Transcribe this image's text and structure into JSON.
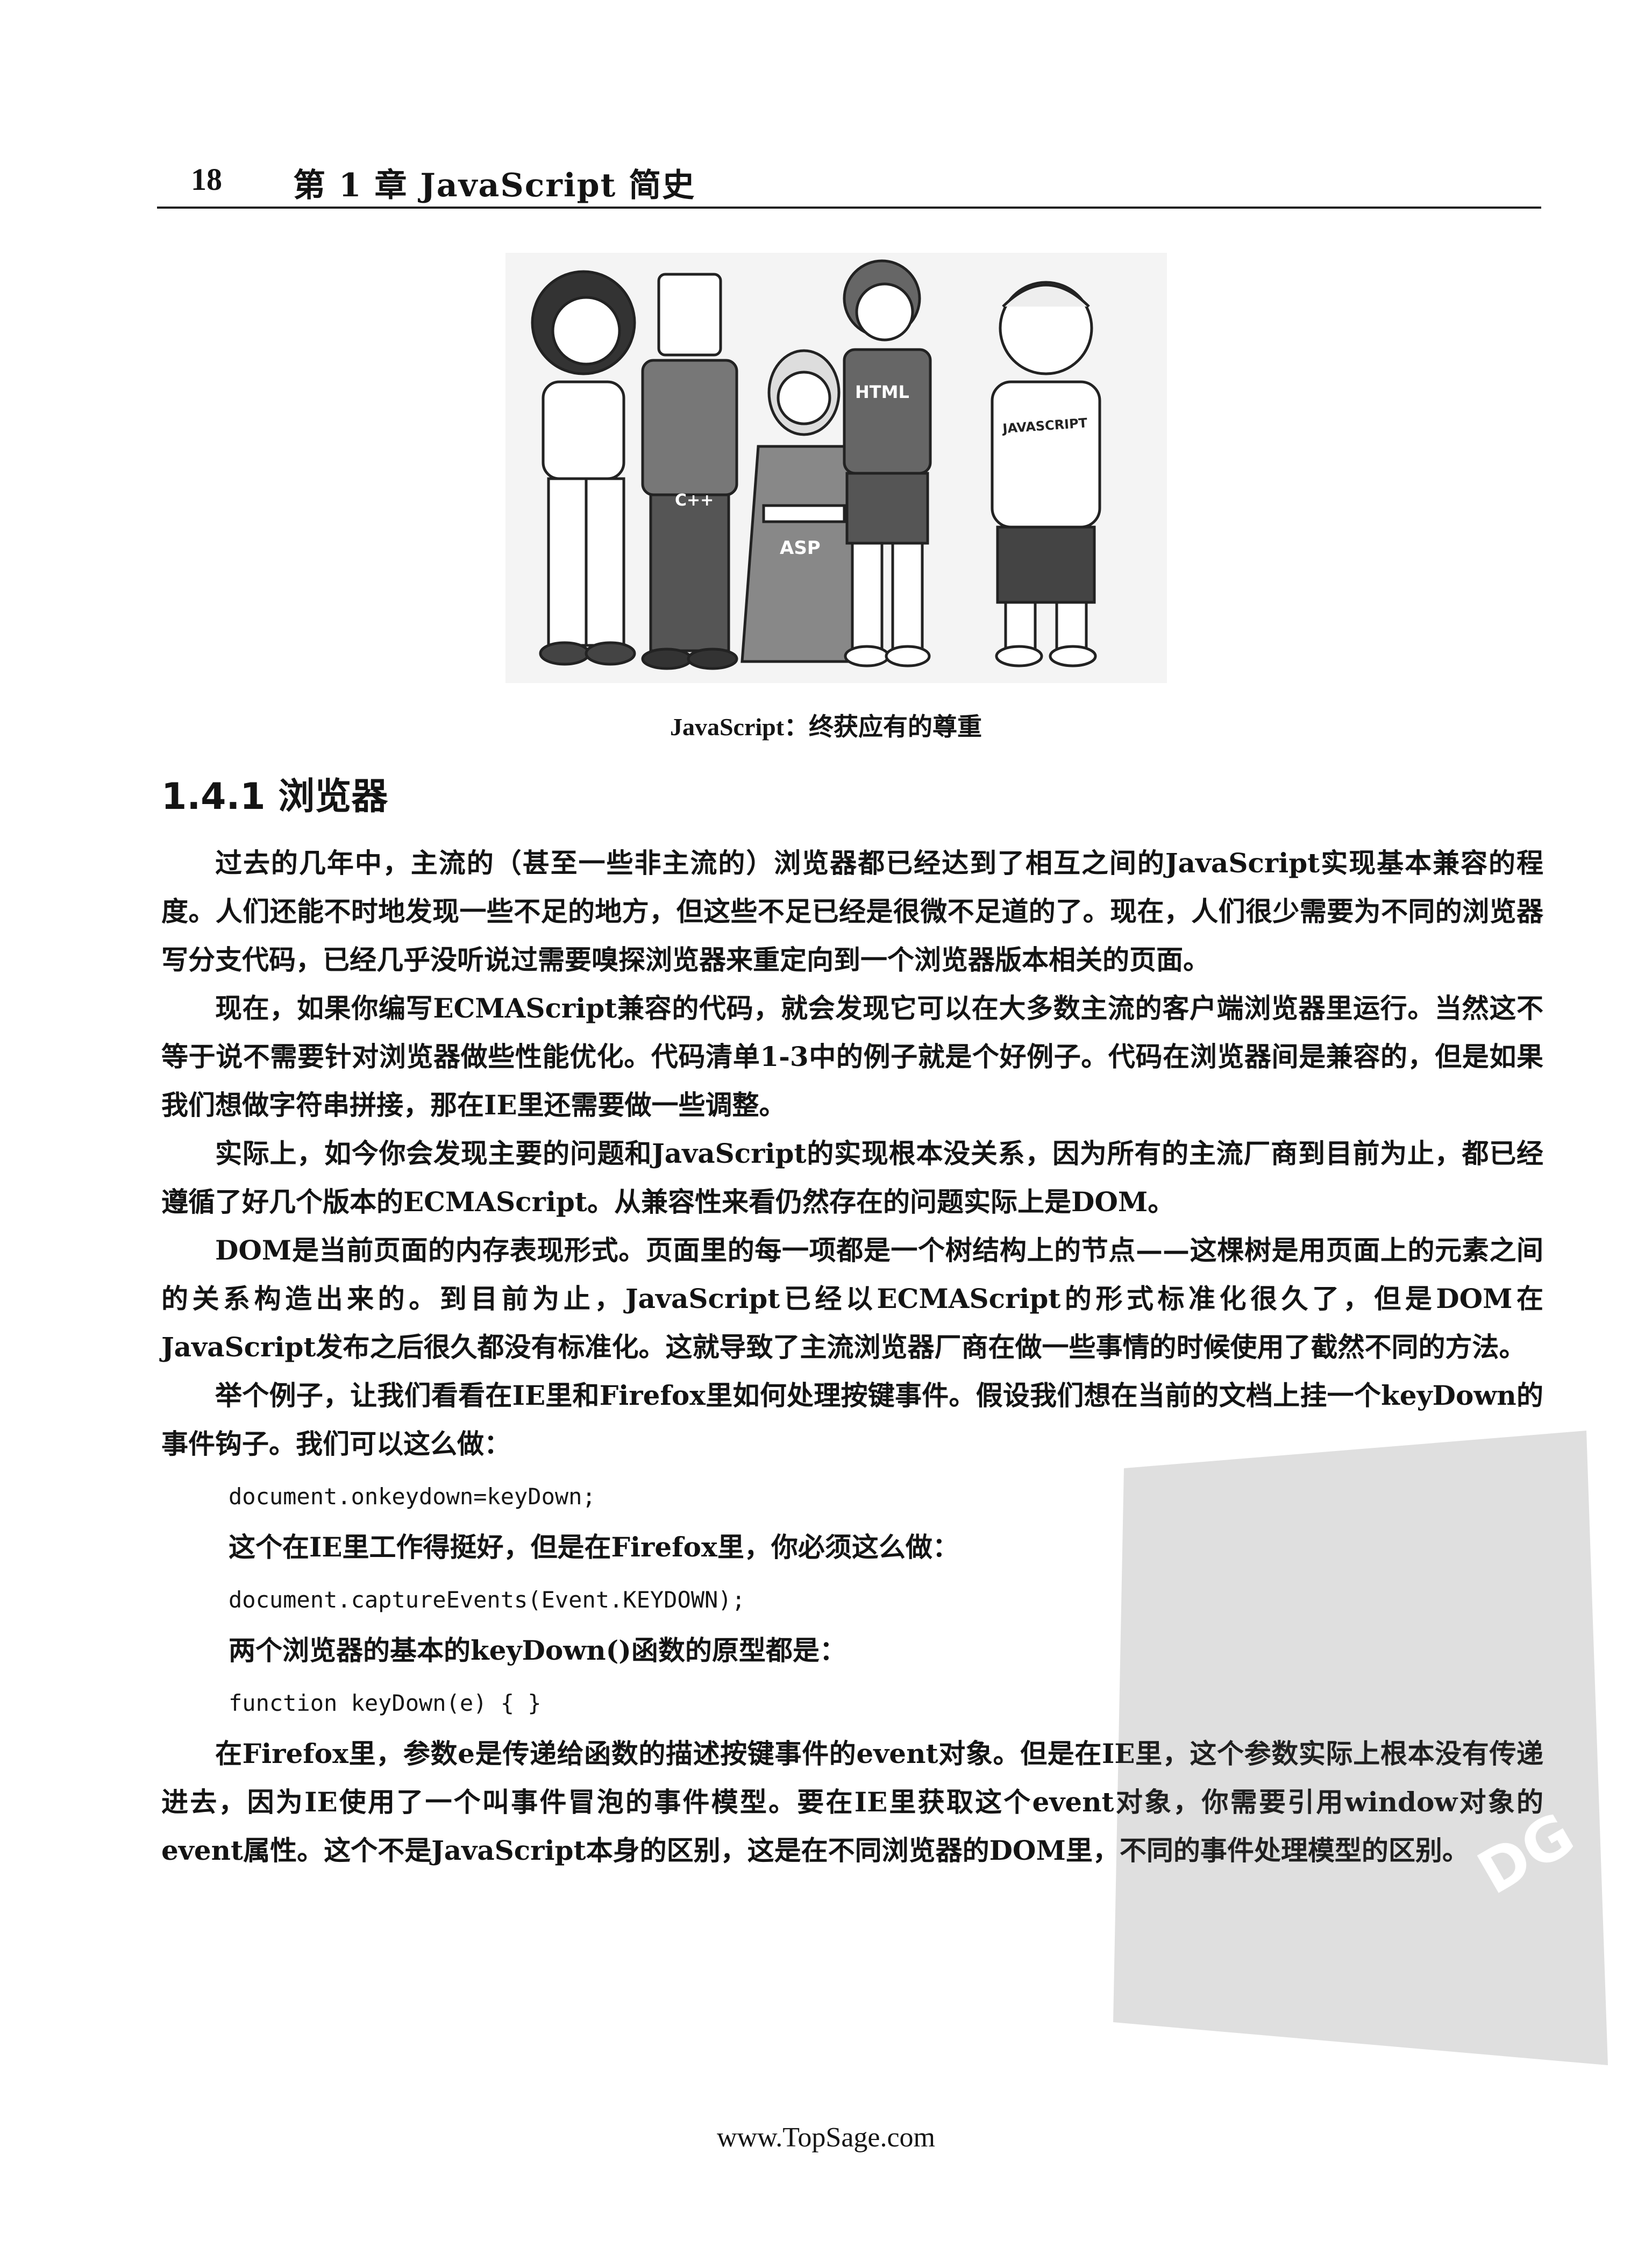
{
  "header": {
    "page_number": "18",
    "chapter_title": "第 1 章  JavaScript 简史"
  },
  "figure": {
    "shirt_labels": [
      "C++",
      "ASP",
      "HTML",
      "JAVASCRIPT"
    ],
    "caption": "JavaScript：终获应有的尊重"
  },
  "section": {
    "heading": "1.4.1   浏览器"
  },
  "paragraphs": [
    "过去的几年中，主流的（甚至一些非主流的）浏览器都已经达到了相互之间的JavaScript实现基本兼容的程度。人们还能不时地发现一些不足的地方，但这些不足已经是很微不足道的了。现在，人们很少需要为不同的浏览器写分支代码，已经几乎没听说过需要嗅探浏览器来重定向到一个浏览器版本相关的页面。",
    "现在，如果你编写ECMAScript兼容的代码，就会发现它可以在大多数主流的客户端浏览器里运行。当然这不等于说不需要针对浏览器做些性能优化。代码清单1-3中的例子就是个好例子。代码在浏览器间是兼容的，但是如果我们想做字符串拼接，那在IE里还需要做一些调整。",
    "实际上，如今你会发现主要的问题和JavaScript的实现根本没关系，因为所有的主流厂商到目前为止，都已经遵循了好几个版本的ECMAScript。从兼容性来看仍然存在的问题实际上是DOM。",
    "DOM是当前页面的内存表现形式。页面里的每一项都是一个树结构上的节点——这棵树是用页面上的元素之间的关系构造出来的。到目前为止，JavaScript已经以ECMAScript的形式标准化很久了，但是DOM在JavaScript发布之后很久都没有标准化。这就导致了主流浏览器厂商在做一些事情的时候使用了截然不同的方法。",
    "举个例子，让我们看看在IE里和Firefox里如何处理按键事件。假设我们想在当前的文档上挂一个keyDown的事件钩子。我们可以这么做："
  ],
  "code_1": "document.onkeydown=keyDown;",
  "after_code_1": "这个在IE里工作得挺好，但是在Firefox里，你必须这么做：",
  "code_2": "document.captureEvents(Event.KEYDOWN);",
  "after_code_2": "两个浏览器的基本的keyDown()函数的原型都是：",
  "code_3": "function keyDown(e) { }",
  "final_paragraph": "在Firefox里，参数e是传递给函数的描述按键事件的event对象。但是在IE里，这个参数实际上根本没有传递进去，因为IE使用了一个叫事件冒泡的事件模型。要在IE里获取这个event对象，你需要引用window对象的event属性。这个不是JavaScript本身的区别，这是在不同浏览器的DOM里，不同的事件处理模型的区别。",
  "watermark_text": "DG",
  "footer": {
    "url": "www.TopSage.com"
  }
}
